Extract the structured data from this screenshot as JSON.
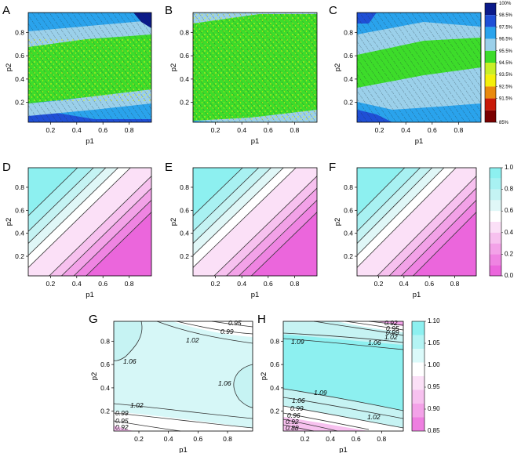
{
  "figure": {
    "panel_letters": [
      "A",
      "B",
      "C",
      "D",
      "E",
      "F",
      "G",
      "H"
    ]
  },
  "chart_data": [
    {
      "type": "heatmap",
      "panel": "A",
      "xlabel": "p1",
      "ylabel": "p2",
      "xticks": [
        "0.2",
        "0.4",
        "0.6",
        "0.8"
      ],
      "yticks": [
        "0.2",
        "0.4",
        "0.6",
        "0.8"
      ],
      "xlim": [
        0.03,
        0.97
      ],
      "ylim": [
        0.03,
        0.97
      ],
      "bands": [
        {
          "level": "98.5%",
          "y_from": 0.03,
          "y_to": 0.12,
          "color": "#1f4fd6"
        },
        {
          "level": "97.5%",
          "y_from": 0.12,
          "y_to": 0.24,
          "color": "#2aa3ec"
        },
        {
          "level": "96.5%",
          "y_from": 0.24,
          "y_to": 0.34,
          "color": "#9bd0ea"
        },
        {
          "level": "95.5%",
          "y_from": 0.34,
          "y_to": 0.72,
          "color": "#3ddc2a"
        },
        {
          "level": "96.5%",
          "y_from": 0.72,
          "y_to": 0.82,
          "color": "#9bd0ea"
        },
        {
          "level": "97.5%",
          "y_from": 0.82,
          "y_to": 0.97,
          "color": "#2aa3ec"
        }
      ]
    },
    {
      "type": "heatmap",
      "panel": "B",
      "xlabel": "p1",
      "ylabel": "p2",
      "xticks": [
        "0.2",
        "0.4",
        "0.6",
        "0.8"
      ],
      "yticks": [
        "0.2",
        "0.4",
        "0.6",
        "0.8"
      ],
      "xlim": [
        0.03,
        0.97
      ],
      "ylim": [
        0.03,
        0.97
      ],
      "bands": [
        {
          "level": "96.5%",
          "y_from": 0.03,
          "y_to": 0.12,
          "color": "#9bd0ea"
        },
        {
          "level": "95.5%",
          "y_from": 0.12,
          "y_to": 0.85,
          "color": "#3ddc2a"
        },
        {
          "level": "96.5%",
          "y_from": 0.85,
          "y_to": 0.97,
          "color": "#9bd0ea"
        }
      ]
    },
    {
      "type": "heatmap",
      "panel": "C",
      "xlabel": "p1",
      "ylabel": "p2",
      "xticks": [
        "0.2",
        "0.4",
        "0.6",
        "0.8"
      ],
      "yticks": [
        "0.2",
        "0.4",
        "0.6",
        "0.8"
      ],
      "xlim": [
        0.03,
        0.97
      ],
      "ylim": [
        0.03,
        0.97
      ],
      "bands": [
        {
          "level": "97.5%",
          "y_from": 0.03,
          "y_to": 0.18,
          "color": "#2aa3ec"
        },
        {
          "level": "96.5%",
          "y_from": 0.18,
          "y_to": 0.38,
          "color": "#9bd0ea"
        },
        {
          "level": "95.5%",
          "y_from": 0.38,
          "y_to": 0.6,
          "color": "#3ddc2a"
        },
        {
          "level": "96.5%",
          "y_from": 0.6,
          "y_to": 0.85,
          "color": "#9bd0ea"
        },
        {
          "level": "97.5%",
          "y_from": 0.85,
          "y_to": 0.97,
          "color": "#2aa3ec"
        }
      ]
    },
    {
      "type": "heatmap",
      "panel": "D",
      "xlabel": "p1",
      "ylabel": "p2",
      "xticks": [
        "0.2",
        "0.4",
        "0.6",
        "0.8"
      ],
      "yticks": [
        "0.2",
        "0.4",
        "0.6",
        "0.8"
      ],
      "xlim": [
        0.03,
        0.97
      ],
      "ylim": [
        0.03,
        0.97
      ],
      "contour_levels": [
        0.1,
        0.2,
        0.3,
        0.4,
        0.5,
        0.6,
        0.7,
        0.8,
        0.9
      ]
    },
    {
      "type": "heatmap",
      "panel": "E",
      "xlabel": "p1",
      "ylabel": "p2",
      "xticks": [
        "0.2",
        "0.4",
        "0.6",
        "0.8"
      ],
      "yticks": [
        "0.2",
        "0.4",
        "0.6",
        "0.8"
      ],
      "xlim": [
        0.03,
        0.97
      ],
      "ylim": [
        0.03,
        0.97
      ],
      "contour_levels": [
        0.1,
        0.2,
        0.3,
        0.4,
        0.5,
        0.6,
        0.7,
        0.8,
        0.9
      ]
    },
    {
      "type": "heatmap",
      "panel": "F",
      "xlabel": "p1",
      "ylabel": "p2",
      "xticks": [
        "0.2",
        "0.4",
        "0.6",
        "0.8"
      ],
      "yticks": [
        "0.2",
        "0.4",
        "0.6",
        "0.8"
      ],
      "xlim": [
        0.03,
        0.97
      ],
      "ylim": [
        0.03,
        0.97
      ],
      "contour_levels": [
        0.1,
        0.2,
        0.3,
        0.4,
        0.5,
        0.6,
        0.7,
        0.8,
        0.9
      ]
    },
    {
      "type": "heatmap",
      "panel": "G",
      "xlabel": "p1",
      "ylabel": "p2",
      "xticks": [
        "0.2",
        "0.4",
        "0.6",
        "0.8"
      ],
      "yticks": [
        "0.2",
        "0.4",
        "0.6",
        "0.8"
      ],
      "xlim": [
        0.03,
        0.97
      ],
      "ylim": [
        0.03,
        0.97
      ],
      "contour_labels": [
        "0.95",
        "0.99",
        "1.02",
        "1.06",
        "1.06",
        "1.02",
        "0.99",
        "0.95",
        "0.92"
      ]
    },
    {
      "type": "heatmap",
      "panel": "H",
      "xlabel": "p1",
      "ylabel": "p2",
      "xticks": [
        "0.2",
        "0.4",
        "0.6",
        "0.8"
      ],
      "yticks": [
        "0.2",
        "0.4",
        "0.6",
        "0.8"
      ],
      "xlim": [
        0.03,
        0.97
      ],
      "ylim": [
        0.03,
        0.97
      ],
      "contour_labels": [
        "0.92",
        "0.95",
        "0.99",
        "1.02",
        "1.06",
        "1.09",
        "1.09",
        "1.06",
        "1.02",
        "0.99",
        "0.96",
        "0.92",
        "0.88"
      ]
    }
  ],
  "legends": {
    "coverage": {
      "labels": [
        "100%",
        "98.5%",
        "97.5%",
        "96.5%",
        "95.5%",
        "94.5%",
        "93.5%",
        "92.5%",
        "91.5%",
        "85%"
      ],
      "colors": [
        "#0b1a8a",
        "#1f4fd6",
        "#2aa3ec",
        "#9bd0ea",
        "#3ddc2a",
        "#c8ef28",
        "#f4f00b",
        "#e98a0e",
        "#c81a08",
        "#7a0000"
      ]
    },
    "unit": {
      "labels": [
        "1.0",
        "0.8",
        "0.6",
        "0.4",
        "0.2",
        "0.0"
      ],
      "colors": [
        "#8df0f0",
        "#a8f1f2",
        "#c4f3f3",
        "#e0f7f7",
        "#ffffff",
        "#fbe0f7",
        "#f7c1ef",
        "#f3a2e8",
        "#ef84e2",
        "#eb66dc"
      ]
    },
    "ratio": {
      "labels": [
        "1.10",
        "1.05",
        "1.00",
        "0.95",
        "0.90",
        "0.85"
      ],
      "colors": [
        "#8df0f0",
        "#b4f4f4",
        "#dbfafa",
        "#ffffff",
        "#fbe0f7",
        "#f7c1ef",
        "#f3a2e8",
        "#ee7fe0"
      ]
    }
  }
}
